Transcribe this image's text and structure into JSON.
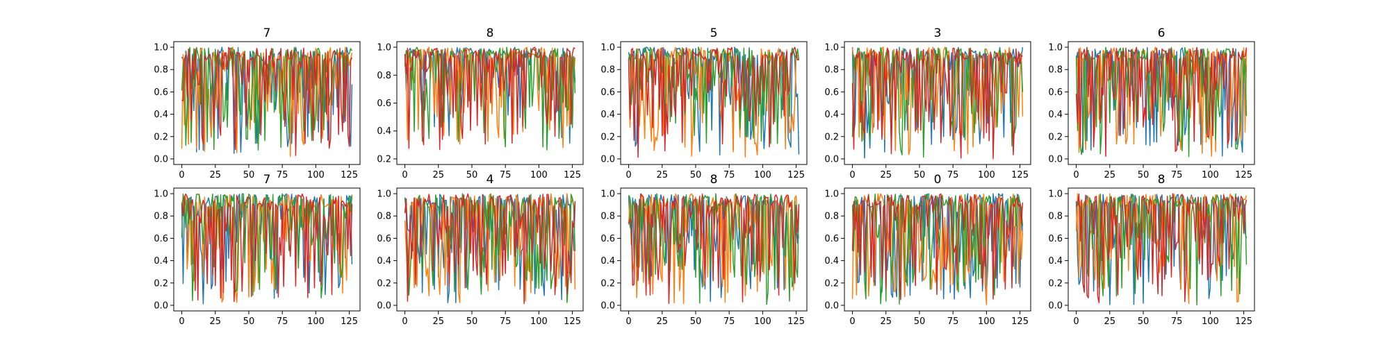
{
  "figure": {
    "colors": [
      "#1f77b4",
      "#ff7f0e",
      "#2ca02c",
      "#d62728"
    ]
  },
  "chart_data": [
    {
      "type": "line",
      "title": "7",
      "xlim": [
        -6,
        133
      ],
      "ylim": [
        -0.05,
        1.05
      ],
      "xticks": [
        0,
        25,
        50,
        75,
        100,
        125
      ],
      "yticks": [
        0.0,
        0.2,
        0.4,
        0.6,
        0.8,
        1.0
      ],
      "ytick_labels": [
        "0.0",
        "0.2",
        "0.4",
        "0.6",
        "0.8",
        "1.0"
      ],
      "x_range": [
        0,
        127
      ],
      "n_series": 4,
      "seed": 11,
      "style": "full"
    },
    {
      "type": "line",
      "title": "8",
      "xlim": [
        -6,
        133
      ],
      "ylim": [
        0.16,
        1.04
      ],
      "xticks": [
        0,
        25,
        50,
        75,
        100,
        125
      ],
      "yticks": [
        0.2,
        0.4,
        0.6,
        0.8,
        1.0
      ],
      "ytick_labels": [
        "0.2",
        "0.4",
        "0.6",
        "0.8",
        "1.0"
      ],
      "x_range": [
        0,
        127
      ],
      "n_series": 4,
      "seed": 23,
      "style": "high"
    },
    {
      "type": "line",
      "title": "5",
      "xlim": [
        -6,
        133
      ],
      "ylim": [
        -0.05,
        1.05
      ],
      "xticks": [
        0,
        25,
        50,
        75,
        100,
        125
      ],
      "yticks": [
        0.0,
        0.2,
        0.4,
        0.6,
        0.8,
        1.0
      ],
      "ytick_labels": [
        "0.0",
        "0.2",
        "0.4",
        "0.6",
        "0.8",
        "1.0"
      ],
      "x_range": [
        0,
        127
      ],
      "n_series": 4,
      "seed": 37,
      "style": "full"
    },
    {
      "type": "line",
      "title": "3",
      "xlim": [
        -6,
        133
      ],
      "ylim": [
        -0.05,
        1.05
      ],
      "xticks": [
        0,
        25,
        50,
        75,
        100,
        125
      ],
      "yticks": [
        0.0,
        0.2,
        0.4,
        0.6,
        0.8,
        1.0
      ],
      "ytick_labels": [
        "0.0",
        "0.2",
        "0.4",
        "0.6",
        "0.8",
        "1.0"
      ],
      "x_range": [
        0,
        127
      ],
      "n_series": 4,
      "seed": 41,
      "style": "full"
    },
    {
      "type": "line",
      "title": "6",
      "xlim": [
        -6,
        133
      ],
      "ylim": [
        -0.05,
        1.05
      ],
      "xticks": [
        0,
        25,
        50,
        75,
        100,
        125
      ],
      "yticks": [
        0.0,
        0.2,
        0.4,
        0.6,
        0.8,
        1.0
      ],
      "ytick_labels": [
        "0.0",
        "0.2",
        "0.4",
        "0.6",
        "0.8",
        "1.0"
      ],
      "x_range": [
        0,
        127
      ],
      "n_series": 4,
      "seed": 53,
      "style": "full"
    },
    {
      "type": "line",
      "title": "7",
      "xlim": [
        -6,
        133
      ],
      "ylim": [
        -0.05,
        1.05
      ],
      "xticks": [
        0,
        25,
        50,
        75,
        100,
        125
      ],
      "yticks": [
        0.0,
        0.2,
        0.4,
        0.6,
        0.8,
        1.0
      ],
      "ytick_labels": [
        "0.0",
        "0.2",
        "0.4",
        "0.6",
        "0.8",
        "1.0"
      ],
      "x_range": [
        0,
        127
      ],
      "n_series": 4,
      "seed": 67,
      "style": "full"
    },
    {
      "type": "line",
      "title": "4",
      "xlim": [
        -6,
        133
      ],
      "ylim": [
        -0.05,
        1.05
      ],
      "xticks": [
        0,
        25,
        50,
        75,
        100,
        125
      ],
      "yticks": [
        0.0,
        0.2,
        0.4,
        0.6,
        0.8,
        1.0
      ],
      "ytick_labels": [
        "0.0",
        "0.2",
        "0.4",
        "0.6",
        "0.8",
        "1.0"
      ],
      "x_range": [
        0,
        127
      ],
      "n_series": 4,
      "seed": 71,
      "style": "full"
    },
    {
      "type": "line",
      "title": "8",
      "xlim": [
        -6,
        133
      ],
      "ylim": [
        -0.05,
        1.05
      ],
      "xticks": [
        0,
        25,
        50,
        75,
        100,
        125
      ],
      "yticks": [
        0.0,
        0.2,
        0.4,
        0.6,
        0.8,
        1.0
      ],
      "ytick_labels": [
        "0.0",
        "0.2",
        "0.4",
        "0.6",
        "0.8",
        "1.0"
      ],
      "x_range": [
        0,
        127
      ],
      "n_series": 4,
      "seed": 83,
      "style": "full"
    },
    {
      "type": "line",
      "title": "0",
      "xlim": [
        -6,
        133
      ],
      "ylim": [
        -0.05,
        1.05
      ],
      "xticks": [
        0,
        25,
        50,
        75,
        100,
        125
      ],
      "yticks": [
        0.0,
        0.2,
        0.4,
        0.6,
        0.8,
        1.0
      ],
      "ytick_labels": [
        "0.0",
        "0.2",
        "0.4",
        "0.6",
        "0.8",
        "1.0"
      ],
      "x_range": [
        0,
        127
      ],
      "n_series": 4,
      "seed": 97,
      "style": "full"
    },
    {
      "type": "line",
      "title": "8",
      "xlim": [
        -6,
        133
      ],
      "ylim": [
        -0.05,
        1.05
      ],
      "xticks": [
        0,
        25,
        50,
        75,
        100,
        125
      ],
      "yticks": [
        0.0,
        0.2,
        0.4,
        0.6,
        0.8,
        1.0
      ],
      "ytick_labels": [
        "0.0",
        "0.2",
        "0.4",
        "0.6",
        "0.8",
        "1.0"
      ],
      "x_range": [
        0,
        127
      ],
      "n_series": 4,
      "seed": 101,
      "style": "full"
    }
  ]
}
